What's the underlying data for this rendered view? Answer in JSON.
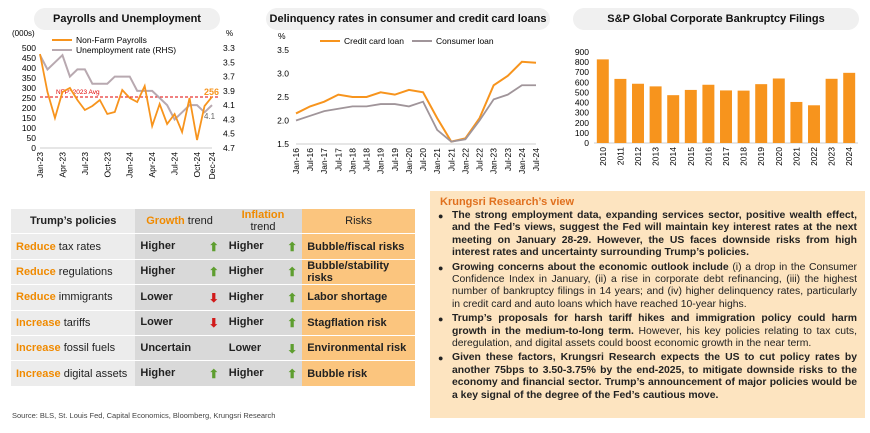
{
  "chart_data": [
    {
      "type": "line",
      "title": "Payrolls and Unemployment",
      "left_axis_label": "(000s)",
      "right_axis_label": "%",
      "x": [
        "Jan-23",
        "Feb-23",
        "Mar-23",
        "Apr-23",
        "May-23",
        "Jun-23",
        "Jul-23",
        "Aug-23",
        "Sep-23",
        "Oct-23",
        "Nov-23",
        "Dec-23",
        "Jan-24",
        "Feb-24",
        "Mar-24",
        "Apr-24",
        "May-24",
        "Jun-24",
        "Jul-24",
        "Aug-24",
        "Sep-24",
        "Oct-24",
        "Nov-24",
        "Dec-24"
      ],
      "x_tick_labels": [
        "Jan-23",
        "Apr-23",
        "Jul-23",
        "Oct-23",
        "Jan-24",
        "Apr-24",
        "Jul-24",
        "Oct-24",
        "Dec-24"
      ],
      "y_left_ticks": [
        0,
        50,
        100,
        150,
        200,
        250,
        300,
        350,
        400,
        450,
        500
      ],
      "y_left_range": [
        0,
        500
      ],
      "y_right_ticks": [
        3.3,
        3.5,
        3.7,
        3.9,
        4.1,
        4.3,
        4.5,
        4.7
      ],
      "y_right_range": [
        3.3,
        4.7
      ],
      "y_right_inverted": true,
      "series": [
        {
          "name": "Non-Farm Payrolls",
          "axis": "left",
          "color": "#f7941d",
          "values": [
            470,
            280,
            150,
            280,
            300,
            240,
            190,
            210,
            240,
            170,
            180,
            290,
            250,
            230,
            310,
            110,
            220,
            120,
            170,
            80,
            250,
            40,
            210,
            256
          ]
        },
        {
          "name": "Unemployment rate (RHS)",
          "axis": "right",
          "color": "#b8a9b0",
          "values": [
            3.4,
            3.6,
            3.5,
            3.4,
            3.7,
            3.6,
            3.6,
            3.8,
            3.8,
            3.8,
            3.7,
            3.7,
            3.7,
            3.9,
            3.9,
            3.9,
            4.0,
            4.1,
            4.3,
            4.2,
            4.1,
            4.1,
            4.2,
            4.1
          ]
        }
      ],
      "reference_line": {
        "label": "NFP: 2023 Avg",
        "value": 255,
        "color": "#e00000"
      },
      "annotations": {
        "last_payroll": "256",
        "last_unemployment": "4.1"
      }
    },
    {
      "type": "line",
      "title": "Delinquency rates in consumer and credit card loans",
      "ylabel": "%",
      "y_ticks": [
        1.5,
        2.0,
        2.5,
        3.0,
        3.5
      ],
      "y_range": [
        1.5,
        3.5
      ],
      "x_tick_labels": [
        "Jan-16",
        "Jul-16",
        "Jan-17",
        "Jul-17",
        "Jan-18",
        "Jul-18",
        "Jan-19",
        "Jul-19",
        "Jan-20",
        "Jul-20",
        "Jan-21",
        "Jul-21",
        "Jan-22",
        "Jul-22",
        "Jan-23",
        "Jul-23",
        "Jan-24",
        "Jul-24"
      ],
      "series": [
        {
          "name": "Credit card loan",
          "color": "#f7941d",
          "values": [
            2.15,
            2.3,
            2.4,
            2.55,
            2.5,
            2.5,
            2.6,
            2.55,
            2.65,
            2.6,
            2.05,
            1.55,
            1.62,
            2.05,
            2.75,
            2.95,
            3.25,
            3.23
          ]
        },
        {
          "name": "Consumer loan",
          "color": "#a0959a",
          "values": [
            2.0,
            2.1,
            2.2,
            2.25,
            2.3,
            2.3,
            2.35,
            2.35,
            2.3,
            2.4,
            1.8,
            1.55,
            1.6,
            2.0,
            2.45,
            2.55,
            2.75,
            2.75
          ]
        }
      ]
    },
    {
      "type": "bar",
      "title": "S&P Global Corporate Bankruptcy Filings",
      "categories": [
        "2010",
        "2011",
        "2012",
        "2013",
        "2014",
        "2015",
        "2016",
        "2017",
        "2018",
        "2019",
        "2020",
        "2021",
        "2022",
        "2023",
        "2024"
      ],
      "values": [
        827,
        634,
        586,
        560,
        473,
        525,
        576,
        520,
        518,
        582,
        638,
        406,
        373,
        635,
        694
      ],
      "y_ticks": [
        0,
        100,
        200,
        300,
        400,
        500,
        600,
        700,
        800,
        900
      ],
      "ylim": [
        0,
        900
      ],
      "color": "#f7941d"
    }
  ],
  "policy_table": {
    "headers": {
      "policy": "Trump’s policies",
      "growth_hl": "Growth",
      "growth_rest": " trend",
      "inflation_hl": "Inflation",
      "inflation_rest": " trend",
      "risks": "Risks"
    },
    "rows": [
      {
        "verb": "Reduce",
        "object": " tax rates",
        "growth": "Higher",
        "growth_dir": "up",
        "inflation": "Higher",
        "inflation_dir": "up",
        "risk": "Bubble/fiscal risks"
      },
      {
        "verb": "Reduce",
        "object": " regulations",
        "growth": "Higher",
        "growth_dir": "up",
        "inflation": "Higher",
        "inflation_dir": "up",
        "risk": "Bubble/stability risks"
      },
      {
        "verb": "Reduce",
        "object": " immigrants",
        "growth": "Lower",
        "growth_dir": "down",
        "inflation": "Higher",
        "inflation_dir": "up",
        "risk": "Labor shortage"
      },
      {
        "verb": "Increase",
        "object": " tariffs",
        "growth": "Lower",
        "growth_dir": "down",
        "inflation": "Higher",
        "inflation_dir": "up",
        "risk": "Stagflation risk"
      },
      {
        "verb": "Increase",
        "object": " fossil fuels",
        "growth": "Uncertain",
        "growth_dir": "none",
        "inflation": "Lower",
        "inflation_dir": "down-green",
        "risk": "Environmental risk"
      },
      {
        "verb": "Increase",
        "object": " digital assets",
        "growth": "Higher",
        "growth_dir": "up",
        "inflation": "Higher",
        "inflation_dir": "up",
        "risk": "Bubble risk"
      }
    ]
  },
  "source": "Source: BLS, St. Louis Fed, Capital Economics, Bloomberg, Krungsri Research",
  "view": {
    "title": "Krungsri Research’s view",
    "bullets": [
      {
        "bold": "The strong employment data, expanding services sector, positive wealth effect, and the Fed’s views, suggest the Fed will maintain key interest rates at the next meeting on January 28-29. However, the US faces downside risks from high interest rates and uncertainty surrounding Trump’s policies.",
        "normal": ""
      },
      {
        "bold": "Growing concerns about the economic outlook include",
        "normal": " (i) a drop in the Consumer Confidence Index in January, (ii) a rise in corporate debt refinancing, (iii) the highest number of bankruptcy filings in 14 years; and (iv) higher delinquency rates, particularly in credit card and auto loans which have reached 10-year highs."
      },
      {
        "bold": "Trump’s proposals for harsh tariff hikes and immigration policy could harm growth in the medium-to-long term.",
        "normal": " However, his key policies relating to tax cuts, deregulation, and digital assets could boost economic growth in the near term."
      },
      {
        "bold": "Given these factors, Krungsri Research expects the US to cut policy rates by another 75bps to 3.50-3.75% by the end-2025, to mitigate downside risks to the economy and financial sector. Trump’s announcement of major policies would be a key signal of the degree of the Fed’s cautious move.",
        "normal": ""
      }
    ]
  },
  "colors": {
    "orange": "#f7941d",
    "grey_line": "#b8a9b0",
    "accent_text": "#f08a00",
    "up_arrow": "#5e9e2f",
    "down_arrow": "#d11a1a"
  }
}
